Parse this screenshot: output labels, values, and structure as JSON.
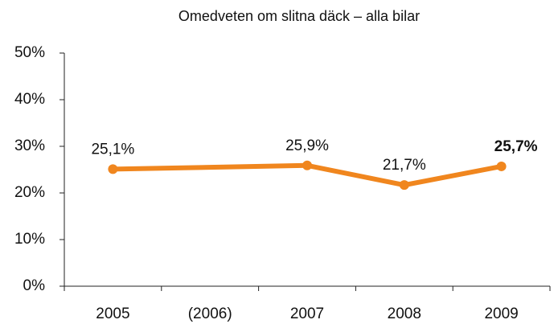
{
  "chart_data": {
    "type": "line",
    "title": "Omedveten om slitna däck – alla bilar",
    "categories": [
      "2005",
      "(2006)",
      "2007",
      "2008",
      "2009"
    ],
    "values": [
      25.1,
      null,
      25.9,
      21.7,
      25.7
    ],
    "value_labels": [
      "25,1%",
      null,
      "25,9%",
      "21,7%",
      "25,7%"
    ],
    "bold_labels": [
      false,
      null,
      false,
      false,
      true
    ],
    "color": "#f0861e",
    "ylim": [
      0,
      50
    ],
    "yticks": [
      {
        "value": 0,
        "label": "0%"
      },
      {
        "value": 10,
        "label": "10%"
      },
      {
        "value": 20,
        "label": "20%"
      },
      {
        "value": 30,
        "label": "30%"
      },
      {
        "value": 40,
        "label": "40%"
      },
      {
        "value": 50,
        "label": "50%"
      }
    ],
    "grid": false
  }
}
